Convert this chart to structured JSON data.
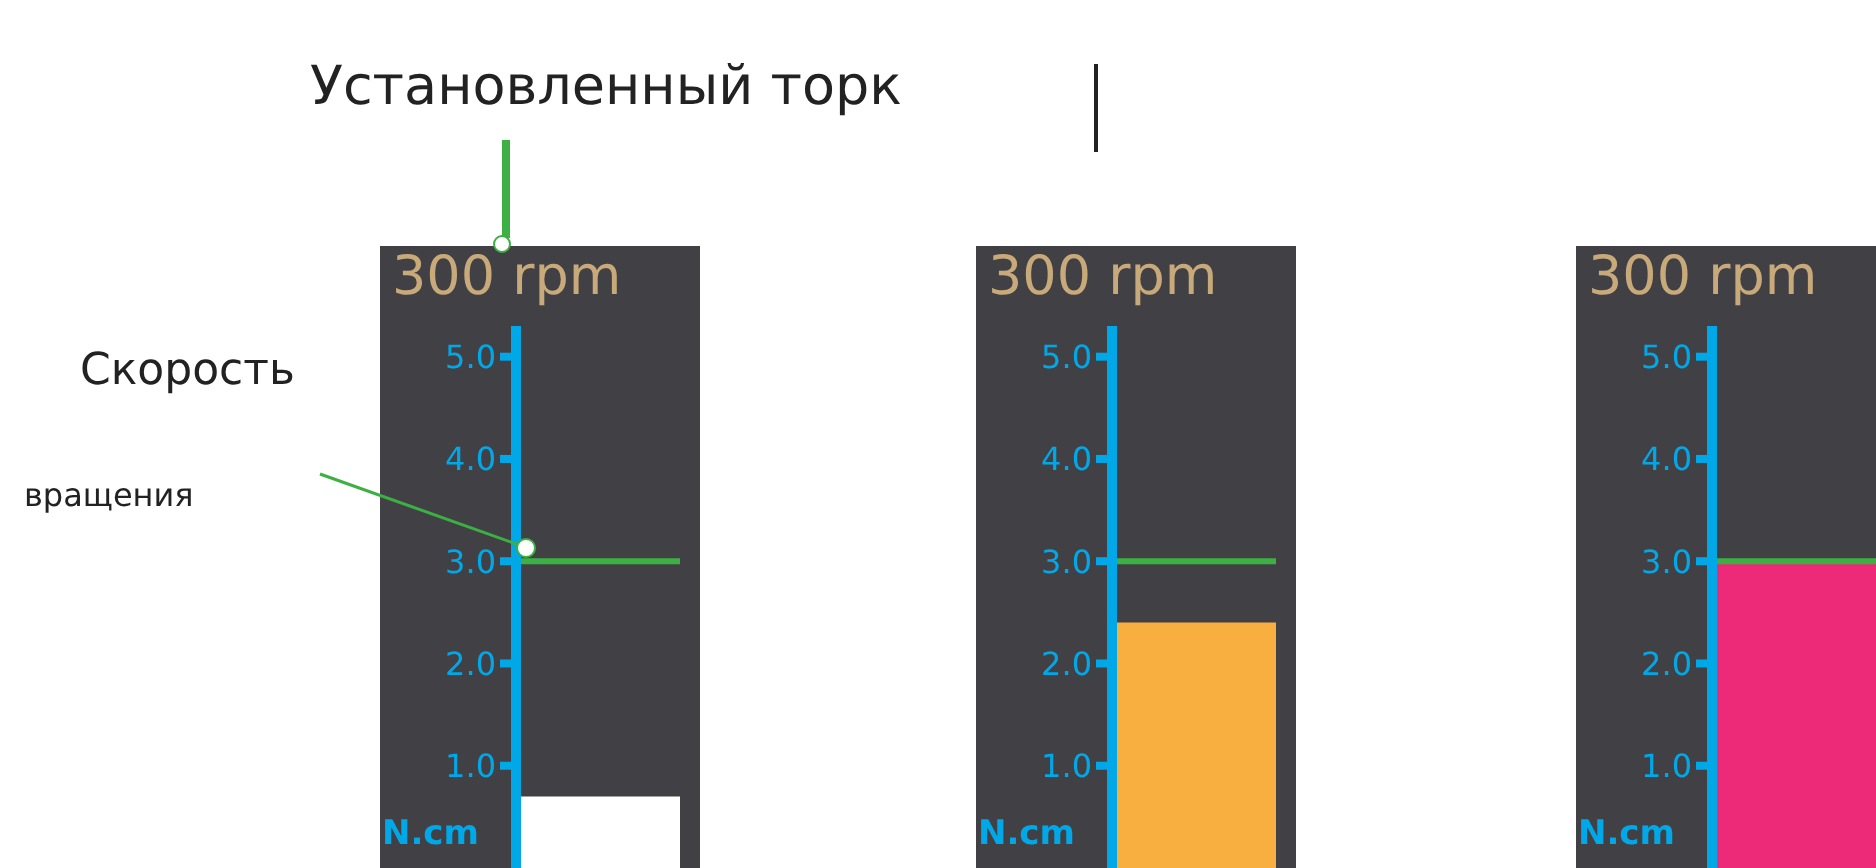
{
  "chart_data": [
    {
      "type": "bar",
      "title": "300 rpm",
      "ylabel": "N.cm",
      "categories": [
        null
      ],
      "values": [
        0.7
      ],
      "colors": [
        "#ffffff"
      ],
      "ylim": [
        0,
        5.3
      ],
      "yticks": [
        {
          "value": 1,
          "label": "1.0"
        },
        {
          "value": 2,
          "label": "2.0"
        },
        {
          "value": 3,
          "label": "3.0"
        },
        {
          "value": 4,
          "label": "4.0"
        },
        {
          "value": 5,
          "label": "5.0"
        }
      ],
      "ref_lines": [
        {
          "axis": "y",
          "value": 3,
          "color": "#3cb043"
        }
      ],
      "annotations": [
        "Установленный торк",
        "Скорость",
        "вращения"
      ]
    },
    {
      "type": "bar",
      "title": "300 rpm",
      "ylabel": "N.cm",
      "categories": [
        null
      ],
      "values": [
        2.4
      ],
      "colors": [
        "#f9ae40"
      ],
      "ylim": [
        0,
        5.3
      ],
      "yticks": [
        {
          "value": 1,
          "label": "1.0"
        },
        {
          "value": 2,
          "label": "2.0"
        },
        {
          "value": 3,
          "label": "3.0"
        },
        {
          "value": 4,
          "label": "4.0"
        },
        {
          "value": 5,
          "label": "5.0"
        }
      ],
      "ref_lines": [
        {
          "axis": "y",
          "value": 3,
          "color": "#3cb043"
        }
      ]
    },
    {
      "type": "bar",
      "title": "300 rpm",
      "ylabel": "N.cm",
      "categories": [
        null
      ],
      "values": [
        3.0
      ],
      "colors": [
        "#ec2a77"
      ],
      "ylim": [
        0,
        5.3
      ],
      "yticks": [
        {
          "value": 1,
          "label": "1.0"
        },
        {
          "value": 2,
          "label": "2.0"
        },
        {
          "value": 3,
          "label": "3.0"
        },
        {
          "value": 4,
          "label": "4.0"
        },
        {
          "value": 5,
          "label": "5.0"
        }
      ],
      "ref_lines": [
        {
          "axis": "y",
          "value": 3,
          "color": "#3cb043"
        }
      ]
    }
  ]
}
